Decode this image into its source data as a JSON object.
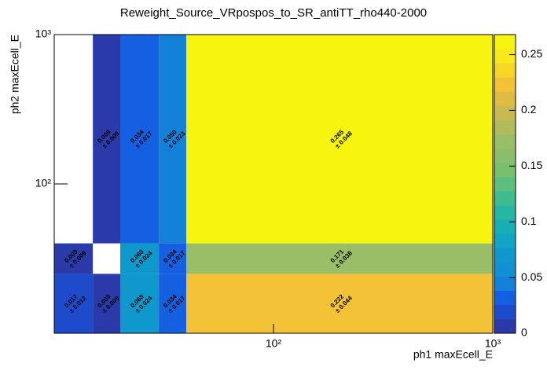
{
  "chart_data": {
    "type": "heatmap",
    "title": "Reweight_Source_VRpospos_to_SR_antiTT_rho440-2000",
    "x_label": "ph1 maxEcell_E",
    "y_label": "ph2 maxEcell_E",
    "log_x": true,
    "log_y": true,
    "xlim": [
      10,
      1000
    ],
    "ylim": [
      10,
      1000
    ],
    "xticks": [
      {
        "value": 100,
        "label": "10²"
      },
      {
        "value": 1000,
        "label": "10³"
      }
    ],
    "yticks": [
      {
        "value": 100,
        "label": "10²"
      },
      {
        "value": 1000,
        "label": "10³"
      }
    ],
    "xbins": [
      10,
      15,
      20,
      30,
      40,
      1000
    ],
    "ybins": [
      10,
      25,
      40,
      1000
    ],
    "values": [
      [
        0.017,
        0.009,
        0.068,
        0.034,
        0.222
      ],
      [
        0.009,
        null,
        0.068,
        0.034,
        0.171
      ],
      [
        null,
        0.009,
        0.034,
        0.05,
        0.265
      ]
    ],
    "value_labels": [
      [
        "0.017",
        "0.009",
        "0.068",
        "0.034",
        "0.222"
      ],
      [
        "0.009",
        null,
        "0.068",
        "0.034",
        "0.171"
      ],
      [
        null,
        "0.009",
        "0.034",
        "0.050",
        "0.265"
      ]
    ],
    "errors": [
      [
        0.012,
        0.009,
        0.024,
        0.017,
        0.044
      ],
      [
        0.009,
        null,
        0.024,
        0.017,
        0.038
      ],
      [
        null,
        0.009,
        0.017,
        0.023,
        0.048
      ]
    ],
    "error_labels": [
      [
        "± 0.012",
        "± 0.009",
        "± 0.024",
        "± 0.017",
        "± 0.044"
      ],
      [
        "± 0.009",
        null,
        "± 0.024",
        "± 0.017",
        "± 0.038"
      ],
      [
        null,
        "± 0.009",
        "± 0.017",
        "± 0.023",
        "± 0.048"
      ]
    ],
    "zlim": [
      0,
      0.268
    ],
    "zticks": [
      0,
      0.05,
      0.1,
      0.15,
      0.2,
      0.25
    ],
    "palette": [
      "#2a3aa8",
      "#1e4bcc",
      "#1560e0",
      "#1580d8",
      "#1290d4",
      "#0e98cc",
      "#11a4c4",
      "#18aeb4",
      "#26b6a4",
      "#40bb90",
      "#5ebe7e",
      "#7abe70",
      "#8bbe6c",
      "#9abd68",
      "#b0bb5c",
      "#c8ba50",
      "#dfbb42",
      "#f4c237",
      "#f8d626",
      "#f7e91a",
      "#f7f40f"
    ]
  }
}
